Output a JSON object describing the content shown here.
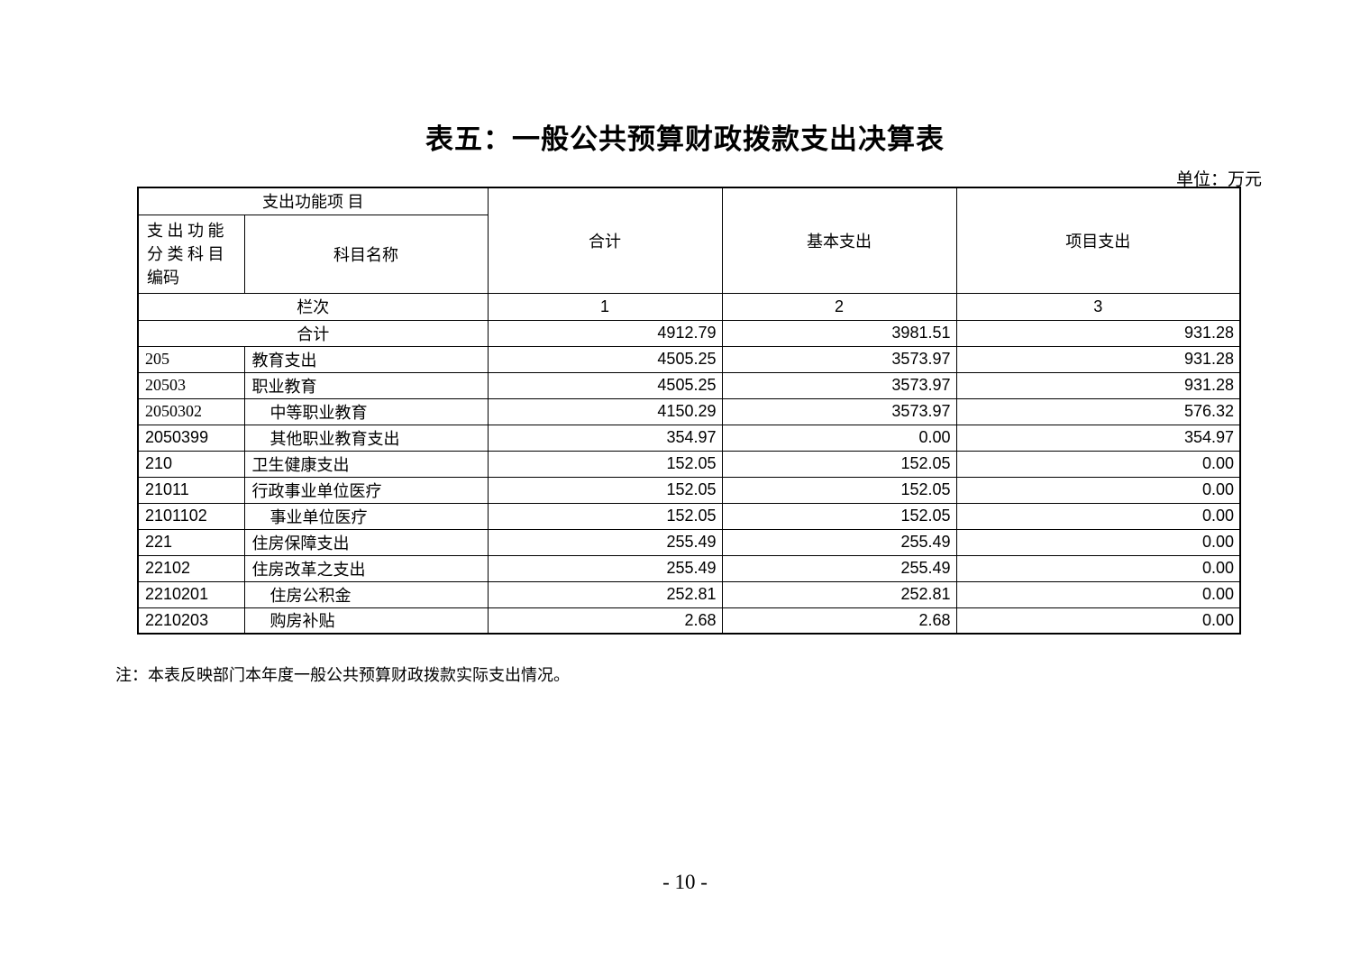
{
  "page": {
    "title": "表五：一般公共预算财政拨款支出决算表",
    "unit_label": "单位：万元",
    "note": "注：本表反映部门本年度一般公共预算财政拨款实际支出情况。",
    "page_number": "- 10 -"
  },
  "table": {
    "header": {
      "function_item_label": "支出功能项 目",
      "code_label": "支 出 功 能\n分 类 科 目\n编码",
      "name_label": "科目名称",
      "col_total": "合计",
      "col_basic": "基本支出",
      "col_project": "项目支出",
      "lanci_label": "栏次",
      "lanci_numbers": [
        "1",
        "2",
        "3"
      ]
    },
    "total_row": {
      "label": "合计",
      "total": "4912.79",
      "basic": "3981.51",
      "project": "931.28"
    },
    "rows": [
      {
        "code": "205",
        "name": "教育支出",
        "indent": false,
        "code_style": "serif",
        "total": "4505.25",
        "basic": "3573.97",
        "project": "931.28"
      },
      {
        "code": "20503",
        "name": "职业教育",
        "indent": false,
        "code_style": "serif",
        "total": "4505.25",
        "basic": "3573.97",
        "project": "931.28"
      },
      {
        "code": "2050302",
        "name": "中等职业教育",
        "indent": true,
        "code_style": "serif",
        "total": "4150.29",
        "basic": "3573.97",
        "project": "576.32"
      },
      {
        "code": "2050399",
        "name": "其他职业教育支出",
        "indent": true,
        "code_style": "sans",
        "total": "354.97",
        "basic": "0.00",
        "project": "354.97"
      },
      {
        "code": "210",
        "name": "卫生健康支出",
        "indent": false,
        "code_style": "sans",
        "total": "152.05",
        "basic": "152.05",
        "project": "0.00"
      },
      {
        "code": "21011",
        "name": "行政事业单位医疗",
        "indent": false,
        "code_style": "sans",
        "total": "152.05",
        "basic": "152.05",
        "project": "0.00"
      },
      {
        "code": "2101102",
        "name": "事业单位医疗",
        "indent": true,
        "code_style": "sans",
        "total": "152.05",
        "basic": "152.05",
        "project": "0.00"
      },
      {
        "code": "221",
        "name": "住房保障支出",
        "indent": false,
        "code_style": "sans",
        "total": "255.49",
        "basic": "255.49",
        "project": "0.00"
      },
      {
        "code": "22102",
        "name": "住房改革之支出",
        "indent": false,
        "code_style": "sans",
        "total": "255.49",
        "basic": "255.49",
        "project": "0.00"
      },
      {
        "code": "2210201",
        "name": "住房公积金",
        "indent": true,
        "code_style": "sans",
        "total": "252.81",
        "basic": "252.81",
        "project": "0.00"
      },
      {
        "code": "2210203",
        "name": "购房补贴",
        "indent": true,
        "code_style": "sans",
        "total": "2.68",
        "basic": "2.68",
        "project": "0.00"
      }
    ]
  }
}
